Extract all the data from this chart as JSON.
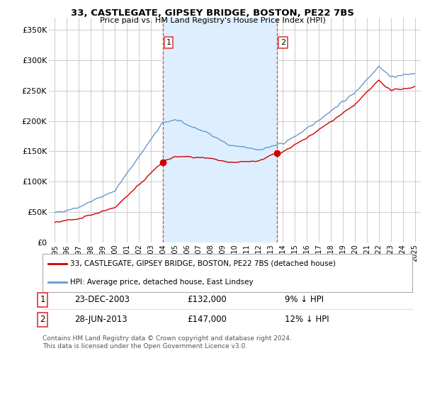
{
  "title": "33, CASTLEGATE, GIPSEY BRIDGE, BOSTON, PE22 7BS",
  "subtitle": "Price paid vs. HM Land Registry's House Price Index (HPI)",
  "legend_label_red": "33, CASTLEGATE, GIPSEY BRIDGE, BOSTON, PE22 7BS (detached house)",
  "legend_label_blue": "HPI: Average price, detached house, East Lindsey",
  "footer_line1": "Contains HM Land Registry data © Crown copyright and database right 2024.",
  "footer_line2": "This data is licensed under the Open Government Licence v3.0.",
  "transaction1_date": "23-DEC-2003",
  "transaction1_price": "£132,000",
  "transaction1_hpi": "9% ↓ HPI",
  "transaction2_date": "28-JUN-2013",
  "transaction2_price": "£147,000",
  "transaction2_hpi": "12% ↓ HPI",
  "marker1_x": 2003.98,
  "marker1_y": 132000,
  "marker2_x": 2013.5,
  "marker2_y": 147000,
  "ylim": [
    0,
    370000
  ],
  "xlim": [
    1994.5,
    2025.5
  ],
  "yticks": [
    0,
    50000,
    100000,
    150000,
    200000,
    250000,
    300000,
    350000
  ],
  "ytick_labels": [
    "£0",
    "£50K",
    "£100K",
    "£150K",
    "£200K",
    "£250K",
    "£300K",
    "£350K"
  ],
  "xticks": [
    1995,
    1996,
    1997,
    1998,
    1999,
    2000,
    2001,
    2002,
    2003,
    2004,
    2005,
    2006,
    2007,
    2008,
    2009,
    2010,
    2011,
    2012,
    2013,
    2014,
    2015,
    2016,
    2017,
    2018,
    2019,
    2020,
    2021,
    2022,
    2023,
    2024,
    2025
  ],
  "background_color": "#ffffff",
  "plot_bg_color": "#ffffff",
  "grid_color": "#cccccc",
  "red_color": "#cc0000",
  "blue_color": "#6699cc",
  "vline_color": "#dd4444",
  "shade_color": "#ddeeff"
}
